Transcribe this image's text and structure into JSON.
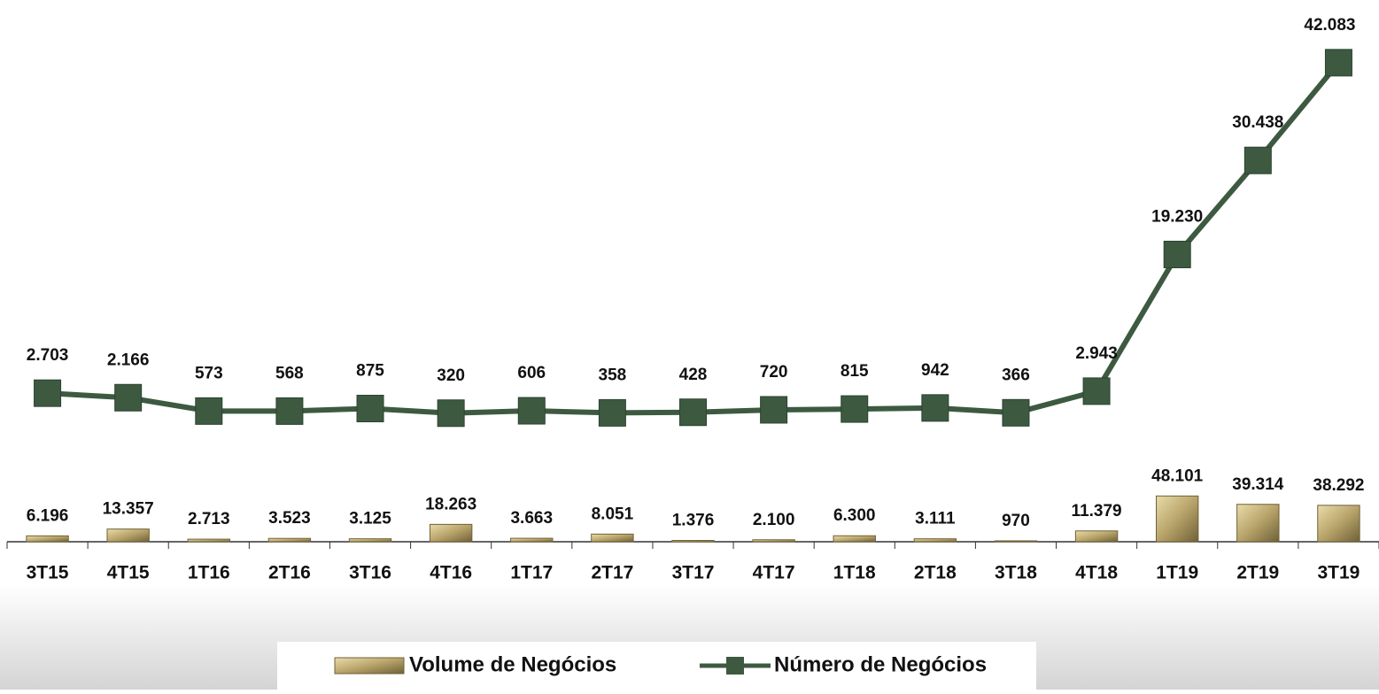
{
  "chart_data": {
    "type": "combo",
    "categories": [
      "3T15",
      "4T15",
      "1T16",
      "2T16",
      "3T16",
      "4T16",
      "1T17",
      "2T17",
      "3T17",
      "4T17",
      "1T18",
      "2T18",
      "3T18",
      "4T18",
      "1T19",
      "2T19",
      "3T19"
    ],
    "series": [
      {
        "name": "Volume de Negócios",
        "type": "bar",
        "color": "#b8a46a",
        "values": [
          6196,
          13357,
          2713,
          3523,
          3125,
          18263,
          3663,
          8051,
          1376,
          2100,
          6300,
          3111,
          970,
          11379,
          48101,
          39314,
          38292
        ],
        "value_labels": [
          "6.196",
          "13.357",
          "2.713",
          "3.523",
          "3.125",
          "18.263",
          "3.663",
          "8.051",
          "1.376",
          "2.100",
          "6.300",
          "3.111",
          "970",
          "11.379",
          "48.101",
          "39.314",
          "38.292"
        ]
      },
      {
        "name": "Número de Negócios",
        "type": "line",
        "axis": "y2",
        "color": "#3d5a41",
        "values": [
          2703,
          2166,
          573,
          568,
          875,
          320,
          606,
          358,
          428,
          720,
          815,
          942,
          366,
          2943,
          19230,
          30438,
          42083
        ],
        "value_labels": [
          "2.703",
          "2.166",
          "573",
          "568",
          "875",
          "320",
          "606",
          "358",
          "428",
          "720",
          "815",
          "942",
          "366",
          "2.943",
          "19.230",
          "30.438",
          "42.083"
        ]
      }
    ],
    "ylim": [
      0,
      560000
    ],
    "y2lim": [
      -15000,
      48500
    ]
  }
}
